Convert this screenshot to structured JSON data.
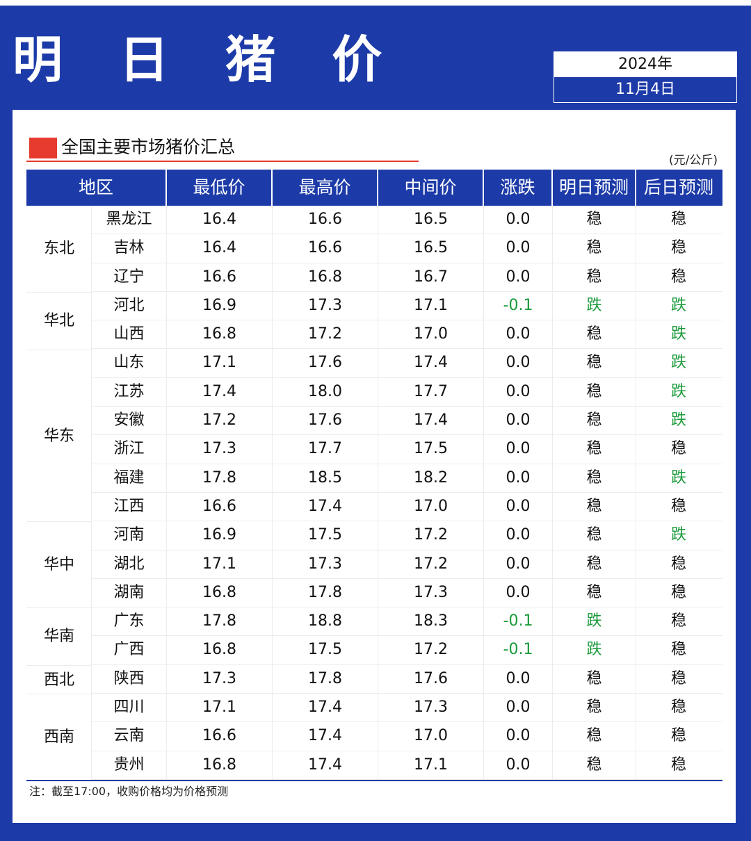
{
  "title": "明 日 猪 价",
  "date": {
    "year": "2024年",
    "day": "11月4日"
  },
  "section_title": "全国主要市场猪价汇总",
  "unit": "(元/公斤)",
  "headers": [
    "地区",
    "最低价",
    "最高价",
    "中间价",
    "涨跌",
    "明日预测",
    "后日预测"
  ],
  "regions": [
    {
      "name": "东北",
      "start": 0,
      "count": 3
    },
    {
      "name": "华北",
      "start": 3,
      "count": 2
    },
    {
      "name": "华东",
      "start": 5,
      "count": 6
    },
    {
      "name": "华中",
      "start": 11,
      "count": 3
    },
    {
      "name": "华南",
      "start": 14,
      "count": 2
    },
    {
      "name": "西北",
      "start": 16,
      "count": 1
    },
    {
      "name": "西南",
      "start": 17,
      "count": 3
    }
  ],
  "rows": [
    {
      "province": "黑龙江",
      "low": "16.4",
      "high": "16.6",
      "mid": "16.5",
      "change": "0.0",
      "tomorrow": "稳",
      "after": "稳"
    },
    {
      "province": "吉林",
      "low": "16.4",
      "high": "16.6",
      "mid": "16.5",
      "change": "0.0",
      "tomorrow": "稳",
      "after": "稳"
    },
    {
      "province": "辽宁",
      "low": "16.6",
      "high": "16.8",
      "mid": "16.7",
      "change": "0.0",
      "tomorrow": "稳",
      "after": "稳"
    },
    {
      "province": "河北",
      "low": "16.9",
      "high": "17.3",
      "mid": "17.1",
      "change": "-0.1",
      "tomorrow": "跌",
      "after": "跌"
    },
    {
      "province": "山西",
      "low": "16.8",
      "high": "17.2",
      "mid": "17.0",
      "change": "0.0",
      "tomorrow": "稳",
      "after": "跌"
    },
    {
      "province": "山东",
      "low": "17.1",
      "high": "17.6",
      "mid": "17.4",
      "change": "0.0",
      "tomorrow": "稳",
      "after": "跌"
    },
    {
      "province": "江苏",
      "low": "17.4",
      "high": "18.0",
      "mid": "17.7",
      "change": "0.0",
      "tomorrow": "稳",
      "after": "跌"
    },
    {
      "province": "安徽",
      "low": "17.2",
      "high": "17.6",
      "mid": "17.4",
      "change": "0.0",
      "tomorrow": "稳",
      "after": "跌"
    },
    {
      "province": "浙江",
      "low": "17.3",
      "high": "17.7",
      "mid": "17.5",
      "change": "0.0",
      "tomorrow": "稳",
      "after": "稳"
    },
    {
      "province": "福建",
      "low": "17.8",
      "high": "18.5",
      "mid": "18.2",
      "change": "0.0",
      "tomorrow": "稳",
      "after": "跌"
    },
    {
      "province": "江西",
      "low": "16.6",
      "high": "17.4",
      "mid": "17.0",
      "change": "0.0",
      "tomorrow": "稳",
      "after": "稳"
    },
    {
      "province": "河南",
      "low": "16.9",
      "high": "17.5",
      "mid": "17.2",
      "change": "0.0",
      "tomorrow": "稳",
      "after": "跌"
    },
    {
      "province": "湖北",
      "low": "17.1",
      "high": "17.3",
      "mid": "17.2",
      "change": "0.0",
      "tomorrow": "稳",
      "after": "稳"
    },
    {
      "province": "湖南",
      "low": "16.8",
      "high": "17.8",
      "mid": "17.3",
      "change": "0.0",
      "tomorrow": "稳",
      "after": "稳"
    },
    {
      "province": "广东",
      "low": "17.8",
      "high": "18.8",
      "mid": "18.3",
      "change": "-0.1",
      "tomorrow": "跌",
      "after": "稳"
    },
    {
      "province": "广西",
      "low": "16.8",
      "high": "17.5",
      "mid": "17.2",
      "change": "-0.1",
      "tomorrow": "跌",
      "after": "稳"
    },
    {
      "province": "陕西",
      "low": "17.3",
      "high": "17.8",
      "mid": "17.6",
      "change": "0.0",
      "tomorrow": "稳",
      "after": "稳"
    },
    {
      "province": "四川",
      "low": "17.1",
      "high": "17.4",
      "mid": "17.3",
      "change": "0.0",
      "tomorrow": "稳",
      "after": "稳"
    },
    {
      "province": "云南",
      "low": "16.6",
      "high": "17.4",
      "mid": "17.0",
      "change": "0.0",
      "tomorrow": "稳",
      "after": "稳"
    },
    {
      "province": "贵州",
      "low": "16.8",
      "high": "17.4",
      "mid": "17.1",
      "change": "0.0",
      "tomorrow": "稳",
      "after": "稳"
    }
  ],
  "note": "注：截至17:00，收购价格均为价格预测",
  "colors": {
    "primary_blue": "#1d3ba8",
    "accent_red": "#e63b2e",
    "down_green": "#1a9a3a"
  }
}
